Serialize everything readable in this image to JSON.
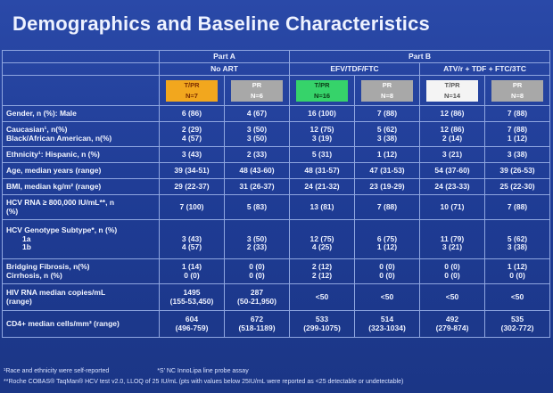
{
  "title": "Demographics and Baseline Characteristics",
  "header": {
    "partA": "Part A",
    "partB": "Part B",
    "noArt": "No ART",
    "efv": "EFV/TDF/FTC",
    "atv": "ATV/r + TDF + FTC/3TC"
  },
  "arms": [
    {
      "line1": "T/PR",
      "line2": "N=7"
    },
    {
      "line1": "PR",
      "line2": "N=6"
    },
    {
      "line1": "T/PR",
      "line2": "N=16"
    },
    {
      "line1": "PR",
      "line2": "N=8"
    },
    {
      "line1": "T/PR",
      "line2": "N=14"
    },
    {
      "line1": "PR",
      "line2": "N=8"
    }
  ],
  "arm_colors": [
    "#f2a71e",
    "#a8a8a8",
    "#36d36a",
    "#a8a8a8",
    "#f4f4f4",
    "#a8a8a8"
  ],
  "rows": [
    {
      "label": "Gender, n (%): Male",
      "values": [
        "6 (86)",
        "4 (67)",
        "16 (100)",
        "7 (88)",
        "12 (86)",
        "7 (88)"
      ]
    },
    {
      "label": "Caucasian¹, n(%)",
      "label2": "Black/African American, n(%)",
      "values": [
        "2 (29)",
        "3 (50)",
        "12 (75)",
        "5 (62)",
        "12 (86)",
        "7 (88)"
      ],
      "values2": [
        "4 (57)",
        "3 (50)",
        "3 (19)",
        "3 (38)",
        "2 (14)",
        "1 (12)"
      ]
    },
    {
      "label": "Ethnicity¹: Hispanic, n (%)",
      "values": [
        "3 (43)",
        "2 (33)",
        "5 (31)",
        "1 (12)",
        "3 (21)",
        "3 (38)"
      ]
    },
    {
      "label": "Age, median years (range)",
      "values": [
        "39 (34-51)",
        "48 (43-60)",
        "48 (31-57)",
        "47 (31-53)",
        "54 (37-60)",
        "39 (26-53)"
      ]
    },
    {
      "label": "BMI, median kg/m² (range)",
      "values": [
        "29 (22-37)",
        "31 (26-37)",
        "24 (21-32)",
        "23 (19-29)",
        "24 (23-33)",
        "25 (22-30)"
      ]
    },
    {
      "label": "HCV RNA ≥ 800,000 IU/mL**, n",
      "label2": "(%)",
      "values": [
        "7 (100)",
        "5 (83)",
        "13 (81)",
        "7 (88)",
        "10 (71)",
        "7 (88)"
      ]
    },
    {
      "label": "HCV Genotype Subtype*, n (%)",
      "label2": "1a",
      "label3": "1b",
      "values": [
        "3 (43)",
        "3 (50)",
        "12 (75)",
        "6 (75)",
        "11 (79)",
        "5 (62)"
      ],
      "values2": [
        "4 (57)",
        "2 (33)",
        "4 (25)",
        "1 (12)",
        "3 (21)",
        "3 (38)"
      ]
    },
    {
      "label": "Bridging Fibrosis, n(%)",
      "label2": "Cirrhosis, n (%)",
      "values": [
        "1 (14)",
        "0 (0)",
        "2 (12)",
        "0 (0)",
        "0 (0)",
        "1 (12)"
      ],
      "values2": [
        "0 (0)",
        "0 (0)",
        "2 (12)",
        "0 (0)",
        "0 (0)",
        "0 (0)"
      ]
    },
    {
      "label": "HIV RNA median copies/mL",
      "label2": "(range)",
      "values": [
        "1495",
        "287",
        "<50",
        "<50",
        "<50",
        "<50"
      ],
      "values2": [
        "(155-53,450)",
        "(50-21,950)",
        "",
        "",
        "",
        ""
      ]
    },
    {
      "label": "CD4+ median cells/mm³ (range)",
      "values": [
        "604",
        "672",
        "533",
        "514",
        "492",
        "535"
      ],
      "values2": [
        "(496-759)",
        "(518-1189)",
        "(299-1075)",
        "(323-1034)",
        "(279-874)",
        "(302-772)"
      ]
    }
  ],
  "footnotes": {
    "f1": "¹Race and ethnicity were self-reported",
    "f2": "*S' NC InnoLipa line probe assay",
    "f3": "**Roche COBAS® TaqMan® HCV test v2.0, LLOQ of 25 IU/mL (pts with values below 25IU/mL were reported as <25 detectable or undetectable)"
  }
}
